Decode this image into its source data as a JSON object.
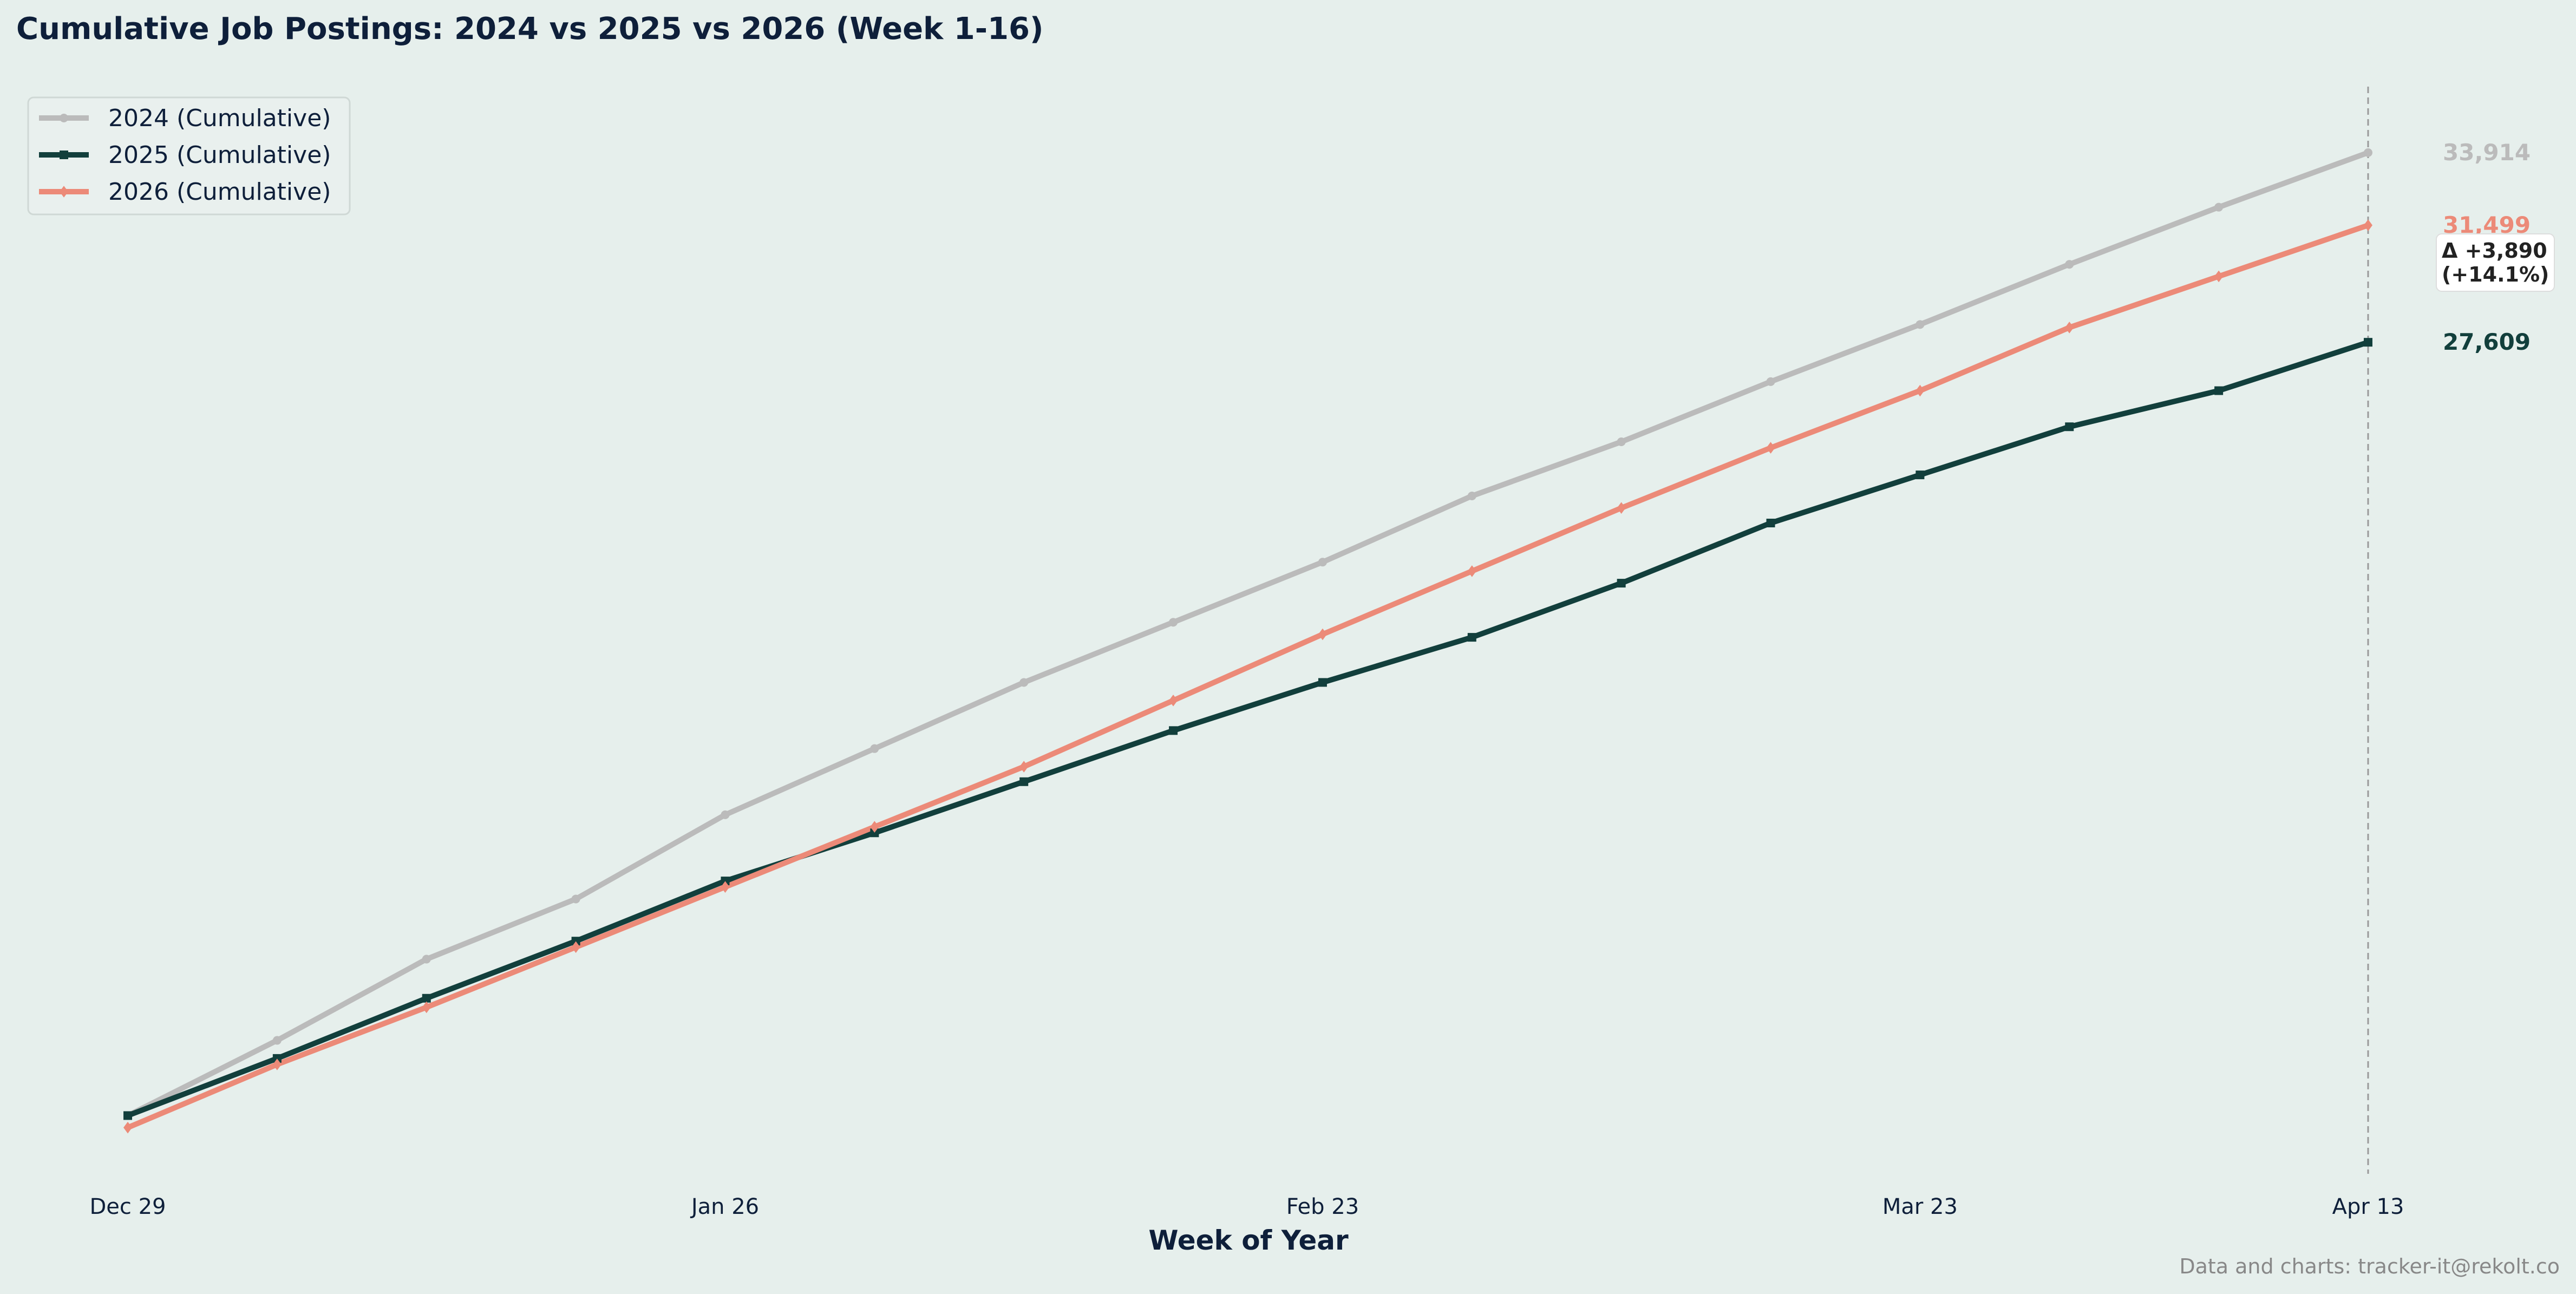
{
  "chart_data": {
    "type": "line",
    "title": "Cumulative Job Postings: 2024 vs 2025 vs 2026 (Week 1-16)",
    "xlabel": "Week of Year",
    "ylabel": "",
    "x": [
      1,
      2,
      3,
      4,
      5,
      6,
      7,
      8,
      9,
      10,
      11,
      12,
      13,
      14,
      15,
      16
    ],
    "xlim": [
      1,
      16
    ],
    "ylim": [
      0,
      36000
    ],
    "x_ticks": [
      {
        "week": 1,
        "label": "Dec 29"
      },
      {
        "week": 5,
        "label": "Jan 26"
      },
      {
        "week": 9,
        "label": "Feb 23"
      },
      {
        "week": 13,
        "label": "Mar 23"
      },
      {
        "week": 16,
        "label": "Apr 13"
      }
    ],
    "y_axis_visible": false,
    "grid": false,
    "legend_position": "top-left",
    "series": [
      {
        "name": "2024 (Cumulative)",
        "color": "#bbbbbb",
        "marker": "circle",
        "values": [
          1900,
          4400,
          7100,
          9100,
          11900,
          14100,
          16300,
          18300,
          20300,
          22500,
          24300,
          26300,
          28200,
          30200,
          32100,
          33914
        ],
        "end_label": "33,914"
      },
      {
        "name": "2025 (Cumulative)",
        "color": "#123f3c",
        "marker": "square",
        "values": [
          1900,
          3800,
          5800,
          7700,
          9700,
          11300,
          13000,
          14700,
          16300,
          17800,
          19600,
          21600,
          23200,
          24800,
          26000,
          27609
        ],
        "end_label": "27,609"
      },
      {
        "name": "2026 (Cumulative)",
        "color": "#ec8a78",
        "marker": "diamond",
        "values": [
          1500,
          3600,
          5500,
          7500,
          9500,
          11500,
          13500,
          15700,
          17900,
          20000,
          22100,
          24100,
          26000,
          28100,
          29800,
          31499
        ],
        "end_label": "31,499"
      }
    ],
    "annotations": {
      "delta_line1": "Δ +3,890",
      "delta_line2": "(+14.1%)"
    },
    "credit": "Data and charts: tracker-it@rekolt.co",
    "reference_line": {
      "week": 16,
      "style": "dashed"
    }
  }
}
